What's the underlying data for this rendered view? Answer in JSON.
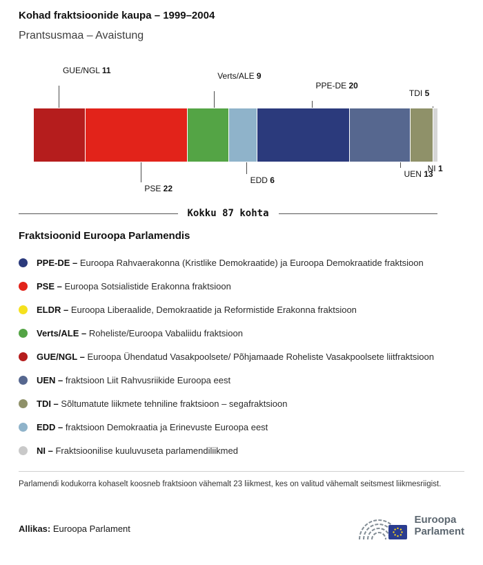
{
  "header": {
    "title": "Kohad fraktsioonide kaupa – 1999–2004",
    "subtitle": "Prantsusmaa – Avaistung"
  },
  "chart_data": {
    "type": "bar",
    "title": "Kohad fraktsioonide kaupa – 1999–2004",
    "subtitle": "Prantsusmaa – Avaistung",
    "total": 87,
    "total_label": "Kokku 87 kohta",
    "segments": [
      {
        "name": "GUE/NGL",
        "seats": 11,
        "color": "#b51d1d",
        "side": "above",
        "offset": 48,
        "line_frac": 0.5,
        "align": "left"
      },
      {
        "name": "PSE",
        "seats": 22,
        "color": "#e2231a",
        "side": "below",
        "offset": 32,
        "line_frac": 0.55,
        "align": "left"
      },
      {
        "name": "Verts/ALE",
        "seats": 9,
        "color": "#54a445",
        "side": "above",
        "offset": 40,
        "line_frac": 0.65,
        "align": "left"
      },
      {
        "name": "EDD",
        "seats": 6,
        "color": "#8fb3ca",
        "side": "below",
        "offset": 20,
        "line_frac": 0.65,
        "align": "left"
      },
      {
        "name": "PPE-DE",
        "seats": 20,
        "color": "#2b3a7c",
        "side": "above",
        "offset": 26,
        "line_frac": 0.6,
        "align": "left"
      },
      {
        "name": "UEN",
        "seats": 13,
        "color": "#56678f",
        "side": "below",
        "offset": 11,
        "line_frac": 0.85,
        "align": "left"
      },
      {
        "name": "TDI",
        "seats": 5,
        "color": "#8f9169",
        "side": "above",
        "offset": 15,
        "line_frac": 1.0,
        "align": "right"
      },
      {
        "name": "NI",
        "seats": 1,
        "color": "#d6d6d6",
        "side": "below",
        "offset": 3,
        "line_frac": 0.5,
        "align": "center",
        "line": false
      }
    ]
  },
  "legend": {
    "title": "Fraktsioonid Euroopa Parlamendis",
    "items": [
      {
        "abbr": "PPE-DE",
        "desc": "Euroopa Rahvaerakonna (Kristlike Demokraatide) ja Euroopa Demokraatide fraktsioon",
        "color": "#2b3a7c"
      },
      {
        "abbr": "PSE",
        "desc": "Euroopa Sotsialistide Erakonna fraktsioon",
        "color": "#e2231a"
      },
      {
        "abbr": "ELDR",
        "desc": "Euroopa Liberaalide, Demokraatide ja Reformistide Erakonna fraktsioon",
        "color": "#f5e11e"
      },
      {
        "abbr": "Verts/ALE",
        "desc": "Roheliste/Euroopa Vabaliidu fraktsioon",
        "color": "#54a445"
      },
      {
        "abbr": "GUE/NGL",
        "desc": "Euroopa Ühendatud Vasakpoolsete/ Põhjamaade Roheliste Vasakpoolsete liitfraktsioon",
        "color": "#b51d1d"
      },
      {
        "abbr": "UEN",
        "desc": "fraktsioon Liit Rahvusriikide Euroopa eest",
        "color": "#56678f"
      },
      {
        "abbr": "TDI",
        "desc": "Sõltumatute liikmete tehniline fraktsioon – segafraktsioon",
        "color": "#8f9169"
      },
      {
        "abbr": "EDD",
        "desc": "fraktsioon Demokraatia ja Erinevuste Euroopa eest",
        "color": "#8fb3ca"
      },
      {
        "abbr": "NI",
        "desc": "Fraktsioonilise kuuluvuseta parlamendiliikmed",
        "color": "#c9c9c9"
      }
    ]
  },
  "footnote": "Parlamendi kodukorra kohaselt koosneb fraktsioon vähemalt 23 liikmest, kes on valitud vähemalt seitsmest liikmesriigist.",
  "source": {
    "label": "Allikas:",
    "text": "Euroopa Parlament"
  },
  "logo": {
    "line1": "Euroopa",
    "line2": "Parlament"
  }
}
